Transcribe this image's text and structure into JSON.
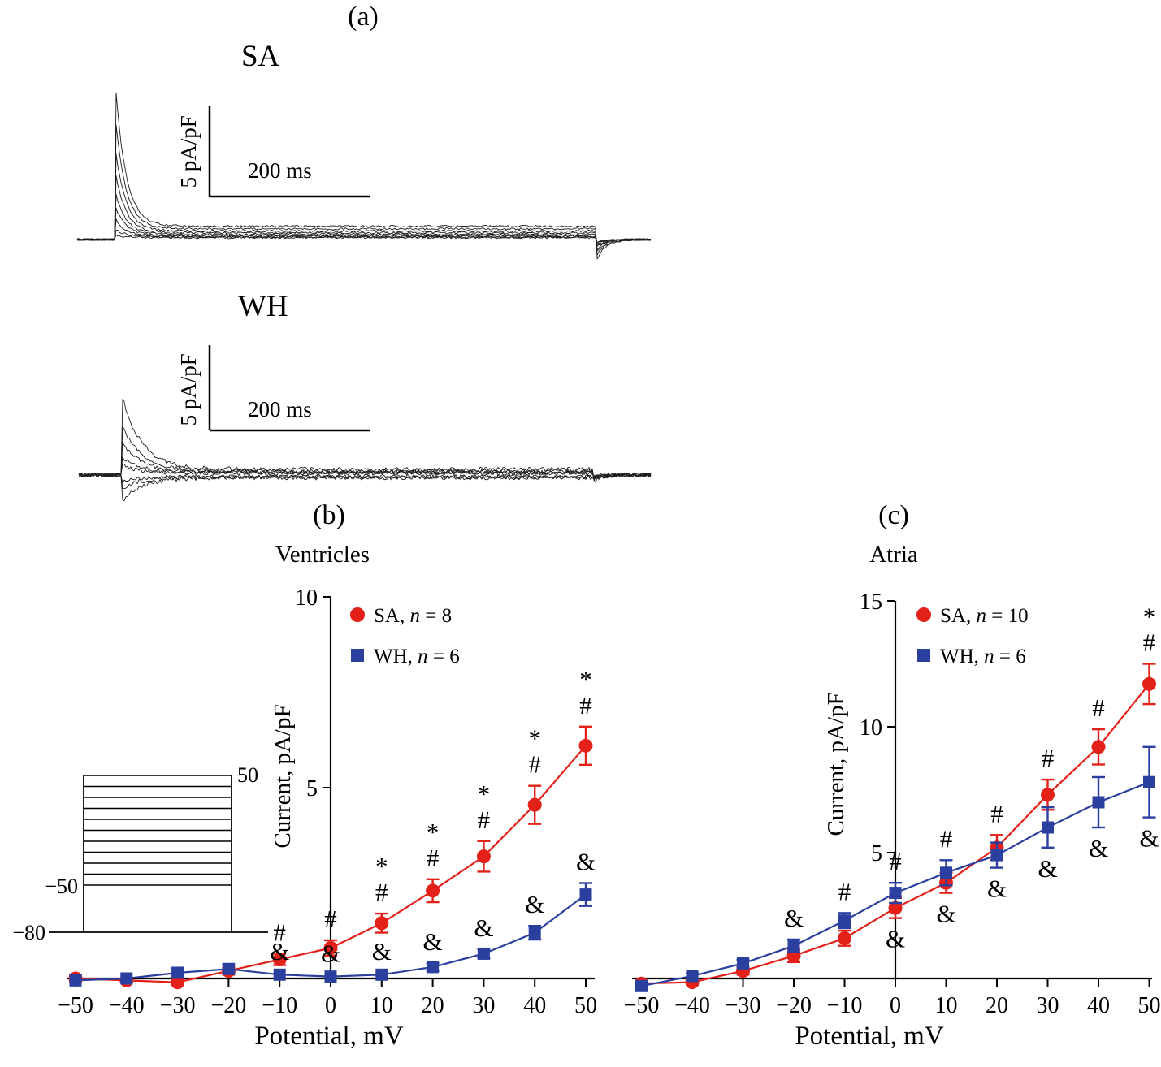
{
  "panel_labels": {
    "a": "(a)",
    "b": "(b)",
    "c": "(c)"
  },
  "panel_a": {
    "sa_label": "SA",
    "wh_label": "WH",
    "sa_scale": {
      "vertical": "5 pA/pF",
      "horizontal": "200 ms"
    },
    "wh_scale": {
      "vertical": "5 pA/pF",
      "horizontal": "200 ms"
    }
  },
  "chart_data": [
    {
      "type": "line",
      "panel": "b",
      "title": "Ventricles",
      "xlabel": "Potential, mV",
      "ylabel": "Current, pA/pF",
      "x": [
        -50,
        -40,
        -30,
        -20,
        -10,
        0,
        10,
        20,
        30,
        40,
        50
      ],
      "xlim": [
        -52,
        52
      ],
      "ylim": [
        -0.6,
        10
      ],
      "yticks": [
        5,
        10
      ],
      "grid": false,
      "legend_position": "top-inside",
      "series": [
        {
          "name": "SA, n = 8",
          "color": "#e32119",
          "marker": "circle",
          "values": [
            0.0,
            -0.05,
            -0.1,
            0.2,
            0.5,
            0.8,
            1.45,
            2.3,
            3.2,
            4.55,
            6.1
          ],
          "errors": [
            0.1,
            0.05,
            0.05,
            0.1,
            0.15,
            0.2,
            0.25,
            0.3,
            0.4,
            0.5,
            0.5
          ]
        },
        {
          "name": "WH, n = 6",
          "color": "#2b3f9e",
          "marker": "square",
          "values": [
            -0.05,
            0.0,
            0.15,
            0.25,
            0.1,
            0.05,
            0.1,
            0.3,
            0.65,
            1.2,
            2.2
          ],
          "errors": [
            0.05,
            0.05,
            0.1,
            0.12,
            0.05,
            0.05,
            0.05,
            0.1,
            0.12,
            0.18,
            0.3
          ]
        }
      ],
      "annotations": [
        {
          "x": -10,
          "series": 0,
          "side": "above",
          "symbols": [
            "#"
          ]
        },
        {
          "x": -10,
          "series": 1,
          "side": "above",
          "symbols": [
            "&"
          ]
        },
        {
          "x": 0,
          "series": 0,
          "side": "above",
          "symbols": [
            "#"
          ]
        },
        {
          "x": 0,
          "series": 1,
          "side": "above",
          "symbols": [
            "&"
          ]
        },
        {
          "x": 10,
          "series": 0,
          "side": "above",
          "symbols": [
            "*",
            "#"
          ]
        },
        {
          "x": 10,
          "series": 1,
          "side": "above",
          "symbols": [
            "&"
          ]
        },
        {
          "x": 20,
          "series": 0,
          "side": "above",
          "symbols": [
            "*",
            "#"
          ]
        },
        {
          "x": 20,
          "series": 1,
          "side": "above",
          "symbols": [
            "&"
          ]
        },
        {
          "x": 30,
          "series": 0,
          "side": "above",
          "symbols": [
            "*",
            "#"
          ]
        },
        {
          "x": 30,
          "series": 1,
          "side": "above",
          "symbols": [
            "&"
          ]
        },
        {
          "x": 40,
          "series": 0,
          "side": "above",
          "symbols": [
            "*",
            "#"
          ]
        },
        {
          "x": 40,
          "series": 1,
          "side": "above",
          "symbols": [
            "&"
          ]
        },
        {
          "x": 50,
          "series": 0,
          "side": "above",
          "symbols": [
            "*",
            "#"
          ]
        },
        {
          "x": 50,
          "series": 1,
          "side": "above",
          "symbols": [
            "&"
          ]
        }
      ],
      "inset_protocol": {
        "holding_mV": -80,
        "steps_from_mV": -50,
        "steps_to_mV": 50,
        "labels": {
          "top": "50",
          "low": "−50",
          "holding": "−80"
        }
      }
    },
    {
      "type": "line",
      "panel": "c",
      "title": "Atria",
      "xlabel": "Potential, mV",
      "ylabel": "Current, pA/pF",
      "x": [
        -50,
        -40,
        -30,
        -20,
        -10,
        0,
        10,
        20,
        30,
        40,
        50
      ],
      "xlim": [
        -52,
        52
      ],
      "ylim": [
        -0.8,
        15
      ],
      "yticks": [
        5,
        10,
        15
      ],
      "grid": false,
      "legend_position": "top-inside",
      "series": [
        {
          "name": "SA, n = 10",
          "color": "#e32119",
          "marker": "circle",
          "values": [
            -0.2,
            -0.15,
            0.3,
            0.9,
            1.6,
            2.8,
            3.8,
            5.2,
            7.3,
            9.2,
            11.7
          ],
          "errors": [
            0.1,
            0.1,
            0.15,
            0.25,
            0.3,
            0.4,
            0.4,
            0.5,
            0.6,
            0.7,
            0.8
          ]
        },
        {
          "name": "WH, n = 6",
          "color": "#2b3f9e",
          "marker": "square",
          "values": [
            -0.3,
            0.1,
            0.6,
            1.3,
            2.3,
            3.4,
            4.2,
            4.9,
            6.0,
            7.0,
            7.8
          ],
          "errors": [
            0.1,
            0.1,
            0.15,
            0.25,
            0.3,
            0.4,
            0.5,
            0.5,
            0.8,
            1.0,
            1.4
          ]
        }
      ],
      "annotations": [
        {
          "x": -20,
          "series": 1,
          "side": "above",
          "symbols": [
            "&"
          ]
        },
        {
          "x": -10,
          "series": 1,
          "side": "above",
          "symbols": [
            "#"
          ]
        },
        {
          "x": 0,
          "series": 1,
          "side": "above",
          "symbols": [
            "#"
          ]
        },
        {
          "x": 0,
          "series": 0,
          "side": "below",
          "symbols": [
            "&"
          ]
        },
        {
          "x": 10,
          "series": 1,
          "side": "above",
          "symbols": [
            "#"
          ]
        },
        {
          "x": 10,
          "series": 0,
          "side": "below",
          "symbols": [
            "&"
          ]
        },
        {
          "x": 20,
          "series": 0,
          "side": "above",
          "symbols": [
            "#"
          ]
        },
        {
          "x": 20,
          "series": 1,
          "side": "below",
          "symbols": [
            "&"
          ]
        },
        {
          "x": 30,
          "series": 0,
          "side": "above",
          "symbols": [
            "#"
          ]
        },
        {
          "x": 30,
          "series": 1,
          "side": "below",
          "symbols": [
            "&"
          ]
        },
        {
          "x": 40,
          "series": 0,
          "side": "above",
          "symbols": [
            "#"
          ]
        },
        {
          "x": 40,
          "series": 1,
          "side": "below",
          "symbols": [
            "&"
          ]
        },
        {
          "x": 50,
          "series": 0,
          "side": "above",
          "symbols": [
            "*",
            "#"
          ]
        },
        {
          "x": 50,
          "series": 1,
          "side": "below",
          "symbols": [
            "&"
          ]
        }
      ]
    }
  ]
}
